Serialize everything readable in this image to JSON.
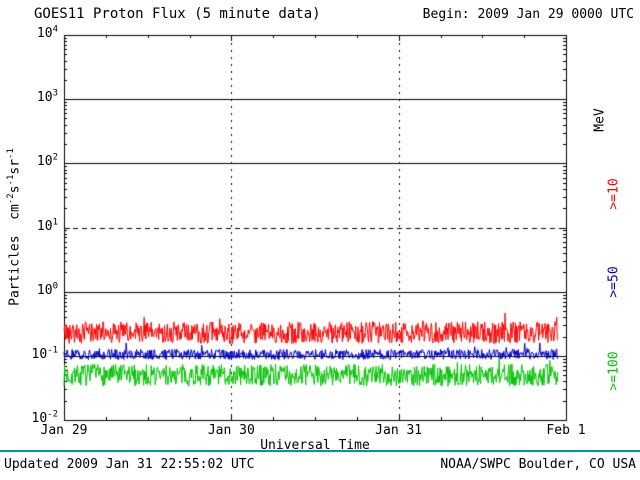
{
  "header": {
    "title": "GOES11 Proton Flux (5 minute data)",
    "begin_label": "Begin: 2009 Jan 29 0000 UTC"
  },
  "axes": {
    "x_label": "Universal Time",
    "y_label_parts": [
      {
        "text": "Particles  cm"
      },
      {
        "sup": "-2"
      },
      {
        "text": "s"
      },
      {
        "sup": "-1"
      },
      {
        "text": "sr"
      },
      {
        "sup": "-1"
      }
    ],
    "right_unit_label": "MeV"
  },
  "footer": {
    "updated": "Updated 2009 Jan 31 22:55:02 UTC",
    "credit": "NOAA/SWPC Boulder, CO USA",
    "divider_color": "#009999"
  },
  "chart_data": {
    "type": "line",
    "title": "GOES11 Proton Flux (5 minute data)",
    "xlabel": "Universal Time",
    "ylabel": "Particles cm^-2 s^-1 sr^-1",
    "x_axis": "time, 3 days of 5-minute data beginning 2009 Jan 29 0000 UTC",
    "y_scale": "log",
    "y_log_range": [
      -2,
      4
    ],
    "x_days": 3,
    "points_per_day": 288,
    "data_end_day": 2.955,
    "x_ticks": [
      {
        "label": "Jan 29",
        "day": 0
      },
      {
        "label": "Jan 30",
        "day": 1
      },
      {
        "label": "Jan 31",
        "day": 2
      },
      {
        "label": "Feb 1",
        "day": 3
      }
    ],
    "y_ticks": [
      {
        "base": "10",
        "exp": "4"
      },
      {
        "base": "10",
        "exp": "3"
      },
      {
        "base": "10",
        "exp": "2"
      },
      {
        "base": "10",
        "exp": "1"
      },
      {
        "base": "10",
        "exp": "0"
      },
      {
        "base": "10",
        "exp": "-1"
      },
      {
        "base": "10",
        "exp": "-2"
      }
    ],
    "solid_gridline_exps": [
      3,
      2,
      0,
      -1
    ],
    "dashed_gridline_exp": 1,
    "vertical_gridline_days": [
      1,
      2
    ],
    "series": [
      {
        "name": ">=10 MeV",
        "label": ">=10",
        "color": "#ff0000",
        "base_flux": 0.23,
        "log_noise_amp": 0.17,
        "spike_prob": 0.03,
        "spike_amp": 0.2,
        "seed": 42
      },
      {
        "name": ">=50 MeV",
        "label": ">=50",
        "color": "#0000c8",
        "base_flux": 0.105,
        "log_noise_amp": 0.08,
        "spike_prob": 0.03,
        "spike_amp": 0.15,
        "seed": 137
      },
      {
        "name": ">=100 MeV",
        "label": ">=100",
        "color": "#00c400",
        "base_flux": 0.05,
        "log_noise_amp": 0.17,
        "spike_prob": 0.03,
        "spike_amp": 0.12,
        "seed": 7
      }
    ]
  }
}
